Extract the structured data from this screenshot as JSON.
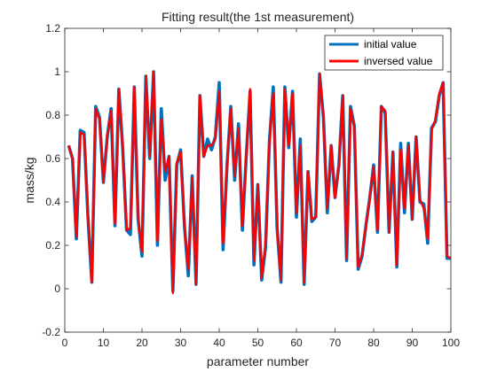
{
  "chart_data": {
    "type": "line",
    "title": "Fitting result(the 1st measurement)",
    "xlabel": "parameter number",
    "ylabel": "mass/kg",
    "xlim": [
      0,
      100
    ],
    "ylim": [
      -0.2,
      1.2
    ],
    "xticks": [
      0,
      10,
      20,
      30,
      40,
      50,
      60,
      70,
      80,
      90,
      100
    ],
    "yticks": [
      -0.2,
      0,
      0.2,
      0.4,
      0.6,
      0.8,
      1,
      1.2
    ],
    "xtick_labels": [
      "0",
      "10",
      "20",
      "30",
      "40",
      "50",
      "60",
      "70",
      "80",
      "90",
      "100"
    ],
    "ytick_labels": [
      "-0.2",
      "0",
      "0.2",
      "0.4",
      "0.6",
      "0.8",
      "1",
      "1.2"
    ],
    "legend": "top-right",
    "grid": false,
    "x": [
      1,
      2,
      3,
      4,
      5,
      6,
      7,
      8,
      9,
      10,
      11,
      12,
      13,
      14,
      15,
      16,
      17,
      18,
      19,
      20,
      21,
      22,
      23,
      24,
      25,
      26,
      27,
      28,
      29,
      30,
      31,
      32,
      33,
      34,
      35,
      36,
      37,
      38,
      39,
      40,
      41,
      42,
      43,
      44,
      45,
      46,
      47,
      48,
      49,
      50,
      51,
      52,
      53,
      54,
      55,
      56,
      57,
      58,
      59,
      60,
      61,
      62,
      63,
      64,
      65,
      66,
      67,
      68,
      69,
      70,
      71,
      72,
      73,
      74,
      75,
      76,
      77,
      78,
      79,
      80,
      81,
      82,
      83,
      84,
      85,
      86,
      87,
      88,
      89,
      90,
      91,
      92,
      93,
      94,
      95,
      96,
      97,
      98,
      99,
      100
    ],
    "series": [
      {
        "name": "initial value",
        "color": "#0072BD",
        "values": [
          0.66,
          0.6,
          0.23,
          0.73,
          0.72,
          0.33,
          0.03,
          0.84,
          0.79,
          0.49,
          0.7,
          0.83,
          0.29,
          0.92,
          0.65,
          0.27,
          0.25,
          0.93,
          0.32,
          0.15,
          0.98,
          0.6,
          1.0,
          0.2,
          0.83,
          0.5,
          0.61,
          -0.01,
          0.57,
          0.64,
          0.29,
          0.06,
          0.52,
          0.02,
          0.89,
          0.61,
          0.69,
          0.64,
          0.7,
          0.95,
          0.18,
          0.56,
          0.84,
          0.5,
          0.76,
          0.27,
          0.61,
          0.91,
          0.11,
          0.48,
          0.04,
          0.19,
          0.68,
          0.93,
          0.28,
          0.03,
          0.93,
          0.65,
          0.91,
          0.33,
          0.69,
          0.02,
          0.54,
          0.31,
          0.33,
          0.99,
          0.79,
          0.35,
          0.66,
          0.42,
          0.57,
          0.89,
          0.13,
          0.84,
          0.75,
          0.09,
          0.15,
          0.29,
          0.42,
          0.57,
          0.26,
          0.84,
          0.81,
          0.26,
          0.63,
          0.1,
          0.67,
          0.35,
          0.67,
          0.32,
          0.7,
          0.4,
          0.39,
          0.21,
          0.74,
          0.77,
          0.89,
          0.95,
          0.14,
          0.14
        ]
      },
      {
        "name": "inversed value",
        "color": "#FF0000",
        "values": [
          0.66,
          0.6,
          0.24,
          0.72,
          0.71,
          0.34,
          0.03,
          0.83,
          0.78,
          0.49,
          0.7,
          0.82,
          0.3,
          0.92,
          0.64,
          0.27,
          0.28,
          0.93,
          0.33,
          0.17,
          0.98,
          0.61,
          1.0,
          0.22,
          0.78,
          0.54,
          0.61,
          -0.02,
          0.58,
          0.63,
          0.29,
          0.09,
          0.51,
          0.02,
          0.89,
          0.61,
          0.66,
          0.66,
          0.69,
          0.91,
          0.21,
          0.57,
          0.83,
          0.52,
          0.74,
          0.29,
          0.61,
          0.92,
          0.13,
          0.48,
          0.05,
          0.21,
          0.67,
          0.9,
          0.29,
          0.04,
          0.92,
          0.66,
          0.9,
          0.35,
          0.66,
          0.03,
          0.54,
          0.32,
          0.33,
          0.99,
          0.78,
          0.37,
          0.66,
          0.42,
          0.57,
          0.89,
          0.14,
          0.83,
          0.74,
          0.1,
          0.16,
          0.29,
          0.42,
          0.56,
          0.27,
          0.84,
          0.82,
          0.26,
          0.63,
          0.11,
          0.64,
          0.37,
          0.66,
          0.32,
          0.7,
          0.41,
          0.37,
          0.23,
          0.73,
          0.78,
          0.9,
          0.95,
          0.15,
          0.14
        ]
      }
    ]
  }
}
